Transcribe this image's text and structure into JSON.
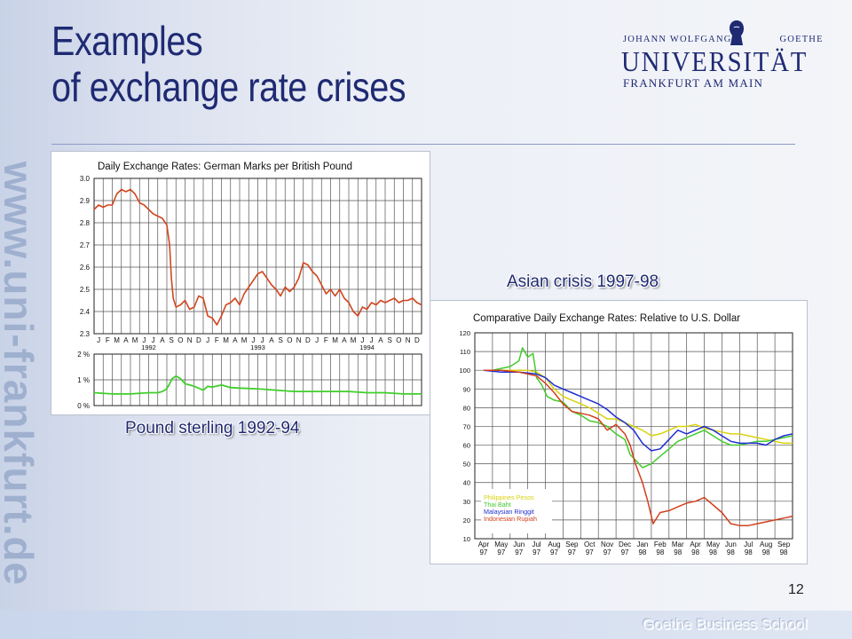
{
  "side_url": "www.uni-frankfurt.de",
  "title": {
    "line1": "Examples",
    "line2": "of exchange rate crises"
  },
  "logo": {
    "top_left": "JOHANN WOLFGANG",
    "top_right": "GOETHE",
    "name": "UNIVERSITÄT",
    "city": "FRANKFURT AM MAIN",
    "icon": "goethe-portrait-icon"
  },
  "page_number": "12",
  "footer_brand": "Goethe Business School",
  "chart_data": [
    {
      "type": "line",
      "title": "Daily Exchange Rates: German Marks per British Pound",
      "caption": "Pound sterling 1992-94",
      "xlabel": "",
      "ylabel": "",
      "months": [
        "J",
        "F",
        "M",
        "A",
        "M",
        "J",
        "J",
        "A",
        "S",
        "O",
        "N",
        "D",
        "J",
        "F",
        "M",
        "A",
        "M",
        "J",
        "J",
        "A",
        "S",
        "O",
        "N",
        "D",
        "J",
        "F",
        "M",
        "A",
        "M",
        "J",
        "J",
        "A",
        "S",
        "O",
        "N",
        "D"
      ],
      "years": [
        "1992",
        "1993",
        "1994"
      ],
      "ylim": [
        2.3,
        3.0
      ],
      "yticks": [
        "3.0",
        "2.9",
        "2.8",
        "2.7",
        "2.6",
        "2.5",
        "2.4",
        "2.3"
      ],
      "series_color": "#d2461e",
      "series": [
        {
          "name": "",
          "x": [
            0,
            0.5,
            1,
            1.5,
            2,
            2.5,
            3,
            3.5,
            4,
            4.5,
            5,
            5.5,
            6,
            6.5,
            7,
            7.5,
            8,
            8.3,
            8.5,
            8.7,
            9,
            9.5,
            10,
            10.5,
            11,
            11.5,
            12,
            12.5,
            13,
            13.5,
            14,
            14.5,
            15,
            15.5,
            16,
            16.5,
            17,
            17.5,
            18,
            18.5,
            19,
            19.5,
            20,
            20.5,
            21,
            21.5,
            22,
            22.5,
            23,
            23.5,
            24,
            24.5,
            25,
            25.5,
            26,
            26.5,
            27,
            27.5,
            28,
            28.5,
            29,
            29.5,
            30,
            30.5,
            31,
            31.5,
            32,
            32.5,
            33,
            33.5,
            34,
            34.5,
            35,
            35.5,
            36
          ],
          "values": [
            2.86,
            2.88,
            2.87,
            2.88,
            2.88,
            2.93,
            2.95,
            2.94,
            2.95,
            2.93,
            2.89,
            2.88,
            2.86,
            2.84,
            2.83,
            2.82,
            2.79,
            2.7,
            2.55,
            2.46,
            2.42,
            2.43,
            2.45,
            2.41,
            2.42,
            2.47,
            2.46,
            2.38,
            2.37,
            2.34,
            2.38,
            2.43,
            2.44,
            2.46,
            2.43,
            2.48,
            2.51,
            2.54,
            2.57,
            2.58,
            2.55,
            2.52,
            2.5,
            2.47,
            2.51,
            2.49,
            2.51,
            2.55,
            2.62,
            2.61,
            2.58,
            2.56,
            2.52,
            2.48,
            2.5,
            2.47,
            2.5,
            2.46,
            2.44,
            2.4,
            2.38,
            2.42,
            2.41,
            2.44,
            2.43,
            2.45,
            2.44,
            2.45,
            2.46,
            2.44,
            2.45,
            2.45,
            2.46,
            2.44,
            2.43
          ]
        }
      ],
      "sub_panel": {
        "yticks": [
          "2 %",
          "1 %",
          "0 %"
        ],
        "ylim": [
          0,
          2
        ],
        "color": "#3fcf2a",
        "x": [
          0,
          2,
          4,
          6,
          7,
          7.5,
          8,
          8.3,
          8.6,
          9,
          9.5,
          10,
          10.5,
          11,
          12,
          12.5,
          13,
          14,
          15,
          16,
          18,
          20,
          22,
          24,
          26,
          28,
          30,
          32,
          34,
          36
        ],
        "values": [
          0.5,
          0.45,
          0.45,
          0.5,
          0.5,
          0.55,
          0.65,
          0.85,
          1.05,
          1.15,
          1.05,
          0.85,
          0.8,
          0.75,
          0.6,
          0.75,
          0.72,
          0.8,
          0.7,
          0.68,
          0.65,
          0.6,
          0.55,
          0.55,
          0.55,
          0.55,
          0.5,
          0.5,
          0.45,
          0.45
        ]
      }
    },
    {
      "type": "line",
      "title": "Comparative Daily Exchange Rates: Relative to U.S. Dollar",
      "caption": "Asian crisis 1997-98",
      "xlabel": "",
      "ylabel": "",
      "ylim": [
        10,
        120
      ],
      "yticks": [
        "120",
        "110",
        "100",
        "90",
        "80",
        "70",
        "60",
        "50",
        "40",
        "30",
        "20",
        "10"
      ],
      "months": [
        "Apr",
        "May",
        "Jun",
        "Jul",
        "Aug",
        "Sep",
        "Oct",
        "Nov",
        "Dec",
        "Jan",
        "Feb",
        "Mar",
        "Apr",
        "May",
        "Jun",
        "Jul",
        "Aug",
        "Sep"
      ],
      "years": [
        "97",
        "97",
        "97",
        "97",
        "97",
        "97",
        "97",
        "97",
        "97",
        "98",
        "98",
        "98",
        "98",
        "98",
        "98",
        "98",
        "98",
        "98"
      ],
      "series": [
        {
          "name": "Philippines Pesos",
          "color": "#d9d20f",
          "x": [
            0,
            1,
            2,
            2.5,
            3,
            3.5,
            4,
            4.5,
            5,
            5.5,
            6,
            6.5,
            7,
            7.5,
            8,
            8.5,
            9,
            9.5,
            10,
            10.5,
            11,
            11.5,
            12,
            12.5,
            13,
            13.5,
            14,
            14.5,
            15,
            15.5,
            16,
            16.5,
            17,
            17.5
          ],
          "values": [
            100,
            100,
            100,
            100,
            99,
            96,
            90,
            86,
            84,
            82,
            80,
            77,
            74,
            74,
            72,
            70,
            68,
            65,
            66,
            68,
            70,
            70,
            71,
            69,
            68,
            67,
            66,
            66,
            65,
            64,
            63,
            62,
            61,
            61
          ]
        },
        {
          "name": "Thai Baht",
          "color": "#43cb2b",
          "x": [
            0,
            0.5,
            1,
            1.5,
            2,
            2.2,
            2.5,
            2.8,
            3,
            3.3,
            3.6,
            4,
            4.5,
            5,
            5.5,
            6,
            6.5,
            7,
            7.5,
            8,
            8.3,
            8.6,
            9,
            9.5,
            10,
            10.5,
            11,
            11.5,
            12,
            12.5,
            13,
            13.5,
            14,
            14.5,
            15,
            15.5,
            16,
            16.5,
            17,
            17.5
          ],
          "values": [
            100,
            100,
            101,
            102,
            105,
            112,
            107,
            109,
            96,
            92,
            86,
            84,
            83,
            78,
            76,
            73,
            72,
            70,
            66,
            63,
            55,
            52,
            48,
            50,
            54,
            58,
            62,
            64,
            66,
            68,
            65,
            62,
            60,
            60,
            61,
            62,
            62,
            63,
            64,
            65
          ]
        },
        {
          "name": "Malaysian Ringgit",
          "color": "#1f2fd1",
          "x": [
            0,
            1,
            2,
            3,
            3.5,
            4,
            4.5,
            5,
            5.5,
            6,
            6.5,
            7,
            7.5,
            8,
            8.5,
            9,
            9.5,
            10,
            10.5,
            11,
            11.5,
            12,
            12.5,
            13,
            13.5,
            14,
            14.5,
            15,
            15.5,
            16,
            16.5,
            17,
            17.5
          ],
          "values": [
            100,
            99,
            99,
            98,
            96,
            92,
            90,
            88,
            86,
            84,
            82,
            79,
            75,
            72,
            68,
            61,
            57,
            58,
            63,
            68,
            66,
            68,
            70,
            68,
            65,
            62,
            61,
            61,
            61,
            60,
            63,
            65,
            66
          ]
        },
        {
          "name": "Indonesian Rupiah",
          "color": "#d1401d",
          "x": [
            0,
            1,
            2,
            3,
            3.5,
            4,
            4.5,
            5,
            5.5,
            6,
            6.5,
            7,
            7.5,
            8,
            8.3,
            8.6,
            9,
            9.3,
            9.6,
            10,
            10.5,
            11,
            11.5,
            12,
            12.5,
            13,
            13.5,
            14,
            14.5,
            15,
            15.5,
            16,
            16.5,
            17,
            17.5
          ],
          "values": [
            100,
            100,
            99,
            97,
            93,
            88,
            82,
            78,
            77,
            76,
            74,
            68,
            71,
            66,
            60,
            50,
            40,
            30,
            18,
            24,
            25,
            27,
            29,
            30,
            32,
            28,
            24,
            18,
            17,
            17,
            18,
            19,
            20,
            21,
            22
          ]
        }
      ]
    }
  ]
}
